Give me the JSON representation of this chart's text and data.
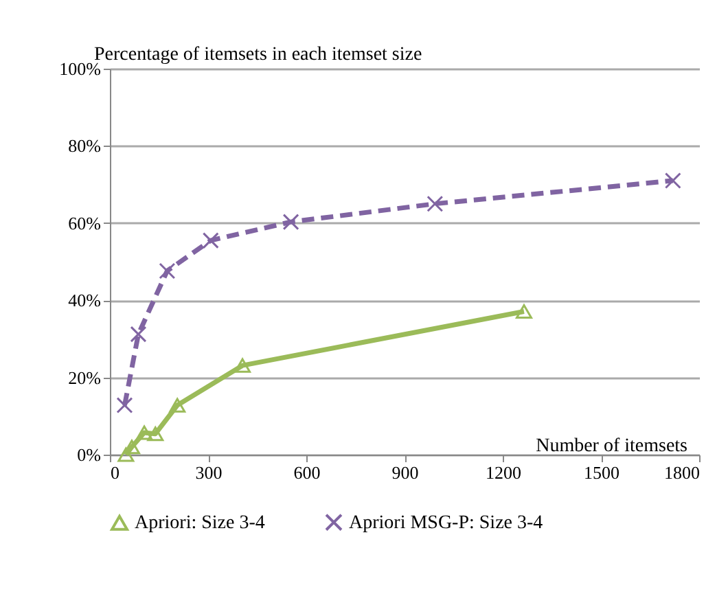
{
  "chart_data": {
    "type": "line",
    "ylabel": "Percentage of itemsets in each itemset size",
    "xlabel": "Number of itemsets",
    "xlim": [
      0,
      1800
    ],
    "xticks": [
      0,
      300,
      600,
      900,
      1200,
      1500,
      1800
    ],
    "ylim": [
      0,
      100
    ],
    "yticks": [
      {
        "value": 0,
        "label": "0%"
      },
      {
        "value": 20,
        "label": "20%"
      },
      {
        "value": 40,
        "label": "40%"
      },
      {
        "value": 60,
        "label": "60%"
      },
      {
        "value": 80,
        "label": "80%"
      },
      {
        "value": 100,
        "label": "100%"
      }
    ],
    "grid": "y",
    "legend": "bottom",
    "series": [
      {
        "name": "Apriori: Size 3-4",
        "color": "#9bbb59",
        "marker": "triangle",
        "line_style": "solid",
        "x": [
          49,
          67,
          105,
          139,
          206,
          405,
          1265
        ],
        "values": [
          0,
          2,
          5.7,
          5.4,
          12.8,
          23.1,
          37.1
        ]
      },
      {
        "name": "Apriori MSG-P: Size 3-4",
        "color": "#8064a2",
        "marker": "cross",
        "line_style": "dashed",
        "x": [
          45,
          87,
          175,
          308,
          553,
          993,
          1720
        ],
        "values": [
          12.8,
          31.2,
          47.6,
          55.5,
          60.3,
          65,
          71
        ]
      }
    ]
  }
}
